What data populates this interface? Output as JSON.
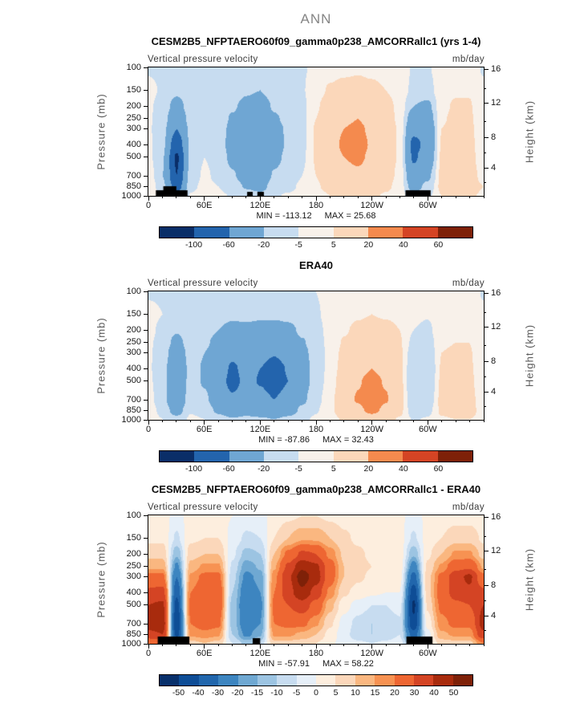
{
  "page_title": "ANN",
  "axes": {
    "ylabel_left": "Pressure (mb)",
    "ylabel_right": "Height (km)",
    "field_label": "Vertical pressure velocity",
    "pressure_ticks": [
      100,
      150,
      200,
      250,
      300,
      400,
      500,
      700,
      850,
      1000
    ],
    "height_ticks": [
      {
        "km": "16",
        "p": 104
      },
      {
        "km": "12",
        "p": 191
      },
      {
        "km": "8",
        "p": 351
      },
      {
        "km": "4",
        "p": 608
      }
    ],
    "height_minor_p": [
      147,
      264,
      466,
      787
    ],
    "lon_ticks": [
      {
        "label": "0",
        "lon": 0
      },
      {
        "label": "60E",
        "lon": 60
      },
      {
        "label": "120E",
        "lon": 120
      },
      {
        "label": "180",
        "lon": 180
      },
      {
        "label": "120W",
        "lon": 240
      },
      {
        "label": "60W",
        "lon": 300
      }
    ],
    "lon_minor_step": 15
  },
  "chart_data": [
    {
      "type": "heatmap",
      "title": "CESM2B5_NFPTAERO60f09_gamma0p238_AMCORRallc1 (yrs 1-4)",
      "units": "mb/day",
      "min_text": "MIN = -113.12",
      "max_text": "MAX =  25.68",
      "levels": [
        -100,
        -60,
        -20,
        -5,
        5,
        20,
        40,
        60
      ],
      "colorbar_labels": [
        "-100",
        "-60",
        "-20",
        "-5",
        "5",
        "20",
        "40",
        "60"
      ],
      "colors": [
        "#0a2e68",
        "#2364ad",
        "#6fa6d3",
        "#c7dcf0",
        "#f8f1ea",
        "#fbd7ba",
        "#f48a4e",
        "#d44424",
        "#7e2108"
      ],
      "lon": [
        0,
        15,
        30,
        45,
        60,
        75,
        90,
        105,
        120,
        135,
        150,
        165,
        180,
        195,
        210,
        225,
        240,
        255,
        270,
        285,
        300,
        315,
        330,
        345,
        360
      ],
      "pressure": [
        100,
        150,
        200,
        250,
        300,
        400,
        500,
        700,
        850,
        1000
      ],
      "values": [
        [
          -6,
          -7,
          -9,
          -7,
          -6,
          -7,
          -9,
          -10,
          -10,
          -8,
          -7,
          -6,
          -3,
          2,
          3,
          4,
          3,
          2,
          1,
          -6,
          -6,
          0,
          2,
          2,
          -6
        ],
        [
          -3,
          -6,
          -15,
          -8,
          -5,
          -8,
          -12,
          -18,
          -20,
          -12,
          -10,
          -6,
          2,
          6,
          8,
          8,
          7,
          5,
          2,
          -8,
          -10,
          2,
          4,
          4,
          -3
        ],
        [
          -4,
          -8,
          -30,
          -10,
          -6,
          -10,
          -18,
          -25,
          -30,
          -18,
          -14,
          -8,
          4,
          10,
          14,
          15,
          12,
          8,
          3,
          -20,
          -25,
          3,
          6,
          6,
          -4
        ],
        [
          -4,
          -10,
          -45,
          -12,
          -6,
          -12,
          -22,
          -30,
          -38,
          -22,
          -16,
          -8,
          5,
          12,
          18,
          20,
          16,
          10,
          3,
          -35,
          -35,
          4,
          7,
          7,
          -4
        ],
        [
          -4,
          -12,
          -60,
          -14,
          -6,
          -12,
          -25,
          -35,
          -45,
          -25,
          -18,
          -8,
          6,
          14,
          20,
          22,
          18,
          11,
          4,
          -50,
          -45,
          5,
          8,
          8,
          -4
        ],
        [
          -3,
          -15,
          -85,
          -16,
          -6,
          -12,
          -28,
          -40,
          -50,
          -28,
          -18,
          -8,
          6,
          15,
          22,
          24,
          19,
          12,
          4,
          -70,
          -50,
          6,
          10,
          9,
          -3
        ],
        [
          -2,
          -18,
          -105,
          -15,
          -5,
          -10,
          -25,
          -38,
          -48,
          -25,
          -16,
          -7,
          6,
          14,
          20,
          22,
          18,
          11,
          4,
          -65,
          -40,
          7,
          11,
          10,
          -2
        ],
        [
          2,
          -20,
          -100,
          -12,
          -3,
          -8,
          -18,
          -30,
          -38,
          -18,
          -12,
          -5,
          5,
          11,
          16,
          18,
          14,
          9,
          3,
          -45,
          -25,
          8,
          12,
          10,
          2
        ],
        [
          5,
          -15,
          -80,
          -8,
          -2,
          -5,
          -12,
          -22,
          -28,
          -12,
          -8,
          -3,
          4,
          8,
          12,
          13,
          11,
          7,
          2,
          -30,
          -15,
          8,
          11,
          9,
          5
        ],
        [
          4,
          -8,
          -40,
          -4,
          -1,
          -3,
          -6,
          -12,
          -15,
          -6,
          -4,
          -2,
          2,
          5,
          7,
          8,
          7,
          4,
          1,
          -15,
          -8,
          5,
          7,
          6,
          4
        ]
      ],
      "surface_bars": [
        [
          8,
          42,
          7
        ],
        [
          16,
          30,
          12
        ],
        [
          106,
          112,
          5
        ],
        [
          117,
          124,
          5
        ],
        [
          276,
          303,
          7
        ]
      ]
    },
    {
      "type": "heatmap",
      "title": "ERA40",
      "units": "mb/day",
      "min_text": "MIN = -87.86",
      "max_text": "MAX =  32.43",
      "levels": [
        -100,
        -60,
        -20,
        -5,
        5,
        20,
        40,
        60
      ],
      "colorbar_labels": [
        "-100",
        "-60",
        "-20",
        "-5",
        "5",
        "20",
        "40",
        "60"
      ],
      "colors": [
        "#0a2e68",
        "#2364ad",
        "#6fa6d3",
        "#c7dcf0",
        "#f8f1ea",
        "#fbd7ba",
        "#f48a4e",
        "#d44424",
        "#7e2108"
      ],
      "lon": [
        0,
        15,
        30,
        45,
        60,
        75,
        90,
        105,
        120,
        135,
        150,
        165,
        180,
        195,
        210,
        225,
        240,
        255,
        270,
        285,
        300,
        315,
        330,
        345,
        360
      ],
      "pressure": [
        100,
        150,
        200,
        250,
        300,
        400,
        500,
        700,
        850,
        1000
      ],
      "values": [
        [
          -6,
          -6,
          -8,
          -7,
          -7,
          -8,
          -9,
          -9,
          -9,
          -9,
          -8,
          -7,
          -5,
          -2,
          1,
          2,
          2,
          2,
          1,
          -2,
          -3,
          1,
          2,
          2,
          -6
        ],
        [
          -3,
          -5,
          -10,
          -6,
          -8,
          -12,
          -15,
          -15,
          -16,
          -16,
          -14,
          -10,
          -6,
          -2,
          2,
          4,
          5,
          4,
          3,
          -2,
          -4,
          2,
          3,
          3,
          -3
        ],
        [
          -3,
          -7,
          -18,
          -8,
          -12,
          -20,
          -28,
          -25,
          -28,
          -30,
          -26,
          -16,
          -8,
          -2,
          4,
          7,
          9,
          8,
          5,
          -5,
          -8,
          3,
          4,
          4,
          -3
        ],
        [
          -4,
          -8,
          -28,
          -10,
          -16,
          -28,
          -40,
          -35,
          -40,
          -45,
          -38,
          -22,
          -10,
          -2,
          6,
          10,
          13,
          11,
          6,
          -8,
          -12,
          4,
          5,
          5,
          -4
        ],
        [
          -4,
          -10,
          -38,
          -12,
          -20,
          -35,
          -52,
          -42,
          -50,
          -58,
          -48,
          -26,
          -12,
          -2,
          8,
          13,
          16,
          13,
          7,
          -12,
          -16,
          5,
          6,
          6,
          -4
        ],
        [
          -4,
          -12,
          -48,
          -13,
          -22,
          -42,
          -65,
          -50,
          -60,
          -72,
          -58,
          -30,
          -13,
          -1,
          10,
          16,
          20,
          16,
          8,
          -16,
          -20,
          6,
          8,
          7,
          -4
        ],
        [
          -3,
          -13,
          -50,
          -12,
          -22,
          -45,
          -70,
          -52,
          -62,
          -78,
          -60,
          -30,
          -12,
          0,
          12,
          19,
          24,
          19,
          9,
          -18,
          -20,
          7,
          9,
          8,
          -3
        ],
        [
          -1,
          -14,
          -45,
          -9,
          -16,
          -35,
          -55,
          -42,
          -50,
          -60,
          -46,
          -24,
          -9,
          2,
          14,
          21,
          30,
          21,
          10,
          -16,
          -15,
          8,
          10,
          9,
          -1
        ],
        [
          2,
          -10,
          -30,
          -6,
          -10,
          -24,
          -38,
          -30,
          -35,
          -42,
          -32,
          -16,
          -6,
          3,
          11,
          17,
          24,
          17,
          8,
          -12,
          -9,
          7,
          9,
          8,
          2
        ],
        [
          3,
          -5,
          -14,
          -3,
          -5,
          -12,
          -18,
          -15,
          -17,
          -20,
          -15,
          -8,
          -3,
          2,
          6,
          9,
          12,
          9,
          4,
          -6,
          -4,
          4,
          5,
          5,
          3
        ]
      ],
      "surface_bars": []
    },
    {
      "type": "heatmap",
      "title": "CESM2B5_NFPTAERO60f09_gamma0p238_AMCORRallc1 - ERA40",
      "units": "mb/day",
      "min_text": "MIN = -57.91",
      "max_text": "MAX =  58.22",
      "levels": [
        -50,
        -40,
        -30,
        -20,
        -15,
        -10,
        -5,
        0,
        5,
        10,
        15,
        20,
        30,
        40,
        50
      ],
      "colorbar_labels": [
        "-50",
        "-40",
        "-30",
        "-20",
        "-15",
        "-10",
        "-5",
        "0",
        "5",
        "10",
        "15",
        "20",
        "30",
        "40",
        "50"
      ],
      "colors": [
        "#08306b",
        "#0e4d96",
        "#2166ac",
        "#3d85c0",
        "#6fa8d2",
        "#9cc4e2",
        "#c7dcf0",
        "#e6eff8",
        "#fdeede",
        "#fbd7ba",
        "#fab780",
        "#f79252",
        "#ee6632",
        "#d44424",
        "#a82b0d",
        "#7e2108"
      ],
      "lon": [
        0,
        15,
        30,
        45,
        60,
        75,
        90,
        105,
        120,
        135,
        150,
        165,
        180,
        195,
        210,
        225,
        240,
        255,
        270,
        285,
        300,
        315,
        330,
        345,
        360
      ],
      "pressure": [
        100,
        150,
        200,
        250,
        300,
        400,
        500,
        700,
        850,
        1000
      ],
      "values": [
        [
          2,
          2,
          -2,
          2,
          2,
          2,
          0,
          -2,
          -2,
          2,
          4,
          5,
          5,
          4,
          3,
          2,
          2,
          2,
          1,
          -2,
          1,
          2,
          3,
          3,
          2
        ],
        [
          4,
          4,
          -6,
          4,
          5,
          5,
          -2,
          -6,
          -5,
          5,
          10,
          14,
          14,
          10,
          6,
          4,
          3,
          3,
          2,
          -6,
          2,
          5,
          8,
          8,
          4
        ],
        [
          8,
          8,
          -14,
          8,
          10,
          10,
          -4,
          -12,
          -10,
          10,
          22,
          32,
          30,
          18,
          9,
          6,
          4,
          4,
          3,
          -14,
          4,
          10,
          16,
          16,
          8
        ],
        [
          14,
          14,
          -22,
          12,
          16,
          16,
          -6,
          -18,
          -14,
          14,
          32,
          48,
          42,
          24,
          10,
          7,
          5,
          4,
          3,
          -24,
          6,
          16,
          26,
          28,
          14
        ],
        [
          22,
          22,
          -30,
          16,
          22,
          22,
          -8,
          -22,
          -18,
          18,
          38,
          55,
          45,
          24,
          10,
          6,
          4,
          3,
          2,
          -34,
          8,
          22,
          36,
          42,
          22
        ],
        [
          32,
          34,
          -38,
          20,
          26,
          26,
          -10,
          -26,
          -20,
          20,
          36,
          48,
          36,
          18,
          6,
          3,
          1,
          0,
          0,
          -46,
          8,
          24,
          34,
          38,
          32
        ],
        [
          40,
          42,
          -44,
          22,
          28,
          26,
          -12,
          -28,
          -22,
          22,
          30,
          36,
          26,
          12,
          2,
          -2,
          -5,
          -5,
          -3,
          -52,
          6,
          22,
          28,
          30,
          40
        ],
        [
          44,
          46,
          -50,
          20,
          24,
          22,
          -12,
          -26,
          -20,
          20,
          22,
          22,
          16,
          6,
          -2,
          -7,
          -10,
          -9,
          -6,
          -48,
          2,
          18,
          22,
          22,
          44
        ],
        [
          38,
          40,
          -44,
          16,
          18,
          16,
          -10,
          -22,
          -16,
          16,
          16,
          14,
          10,
          3,
          -3,
          -8,
          -10,
          -8,
          -5,
          -36,
          -2,
          14,
          16,
          16,
          38
        ],
        [
          20,
          22,
          -24,
          8,
          10,
          8,
          -5,
          -12,
          -8,
          8,
          8,
          7,
          5,
          1,
          -2,
          -4,
          -5,
          -4,
          -3,
          -18,
          -2,
          7,
          8,
          8,
          20
        ]
      ],
      "surface_bars": [
        [
          10,
          44,
          9
        ],
        [
          112,
          120,
          7
        ],
        [
          277,
          305,
          9
        ]
      ]
    }
  ]
}
